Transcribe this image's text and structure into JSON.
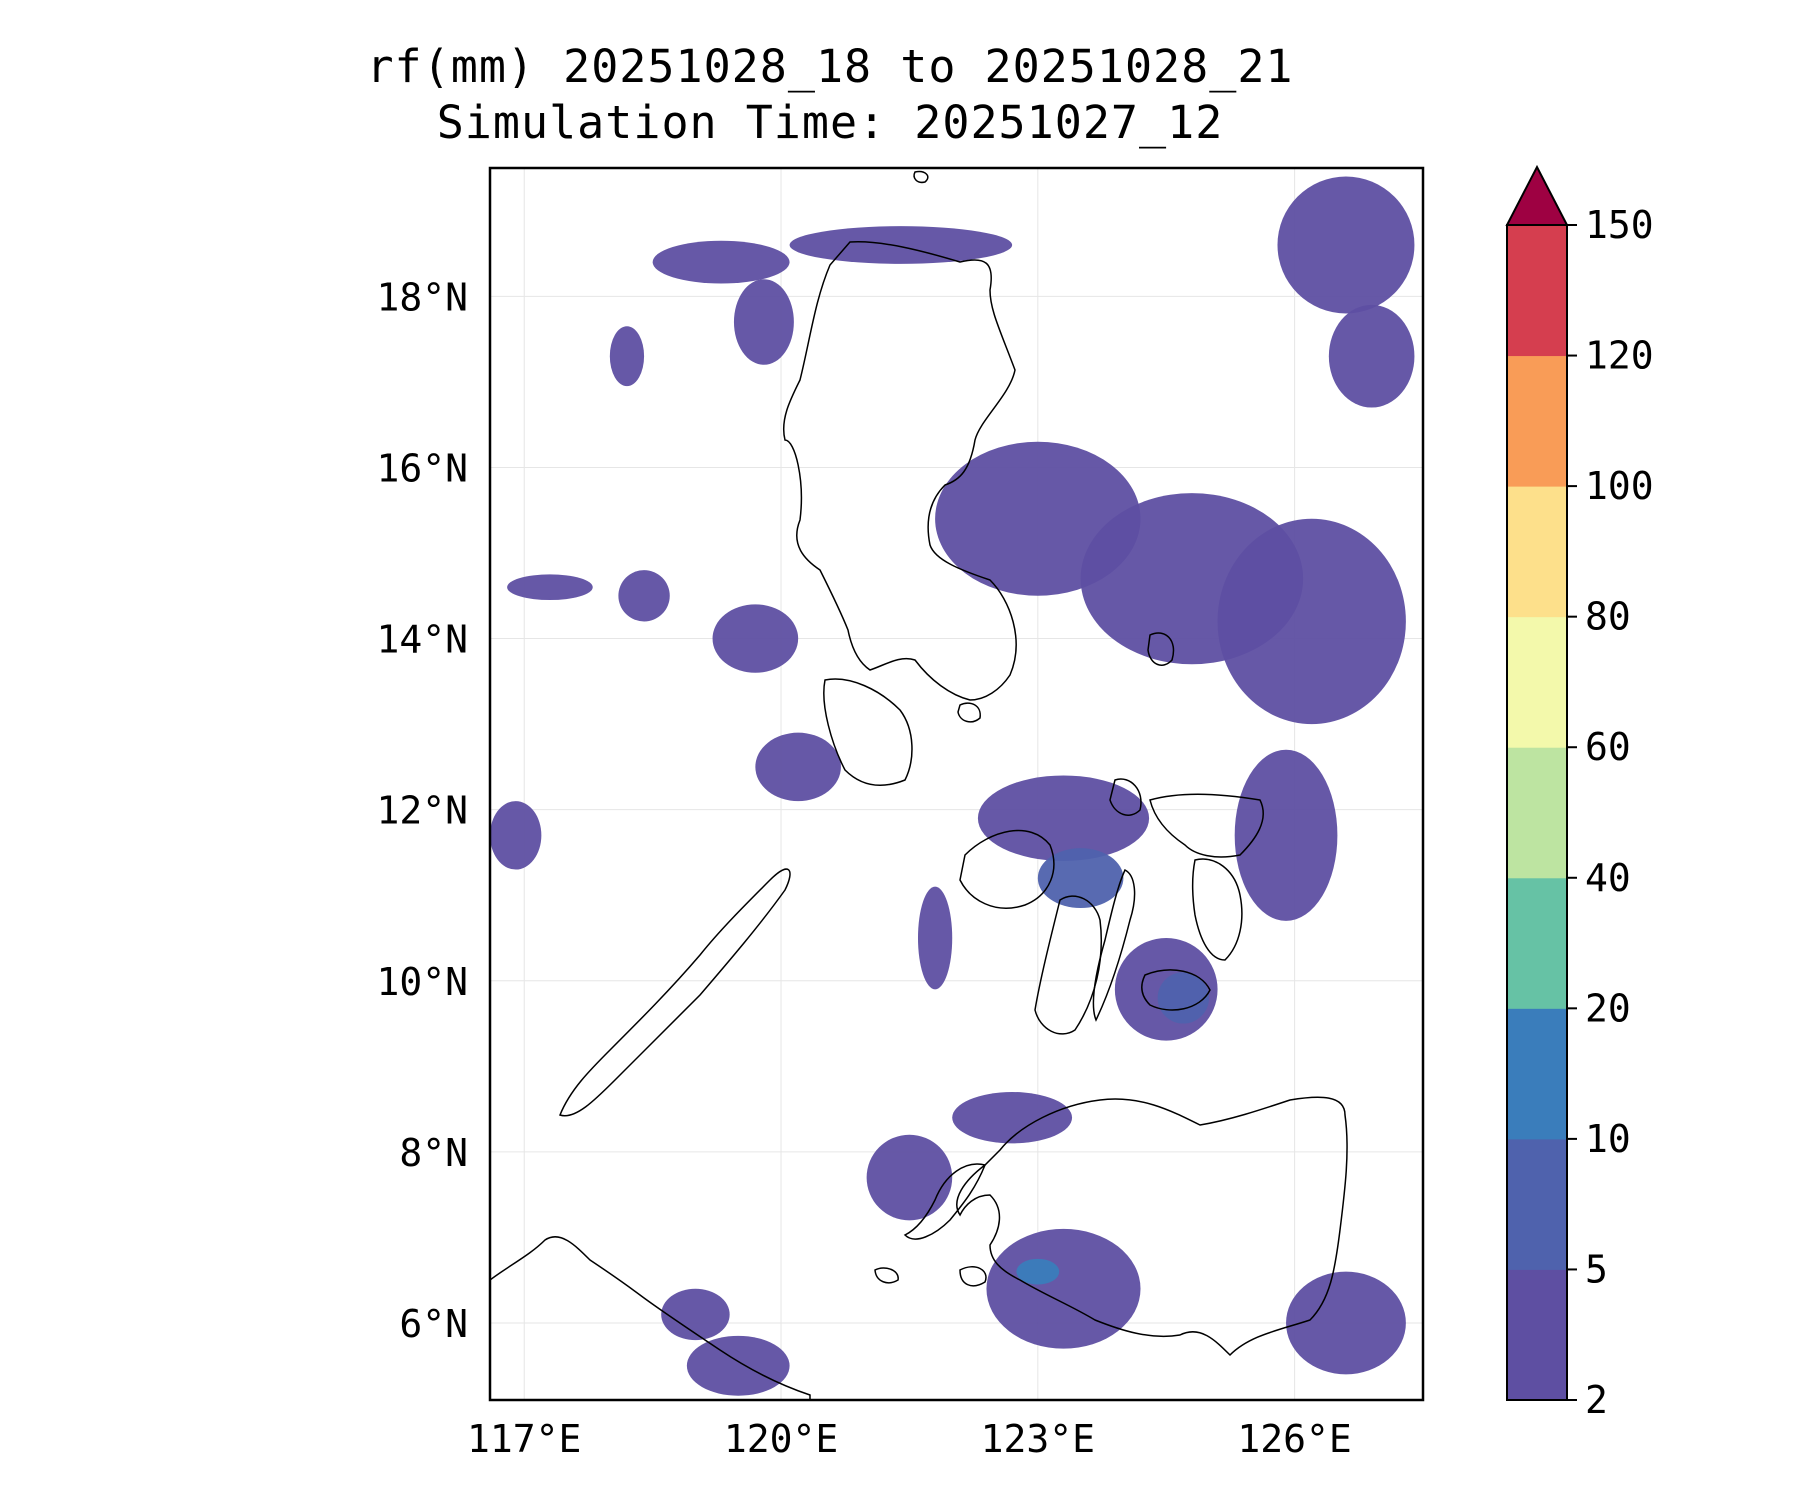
{
  "title": {
    "line1": "rf(mm) 20251028_18 to 20251028_21",
    "line2": "Simulation Time: 20251027_12"
  },
  "map": {
    "lon_range": [
      116.6,
      127.5
    ],
    "lat_range": [
      5.1,
      19.5
    ],
    "lat_ticks": [
      {
        "value": 18,
        "label": "18°N"
      },
      {
        "value": 16,
        "label": "16°N"
      },
      {
        "value": 14,
        "label": "14°N"
      },
      {
        "value": 12,
        "label": "12°N"
      },
      {
        "value": 10,
        "label": "10°N"
      },
      {
        "value": 8,
        "label": "8°N"
      },
      {
        "value": 6,
        "label": "6°N"
      }
    ],
    "lon_ticks": [
      {
        "value": 117,
        "label": "117°E"
      },
      {
        "value": 120,
        "label": "120°E"
      },
      {
        "value": 123,
        "label": "123°E"
      },
      {
        "value": 126,
        "label": "126°E"
      }
    ],
    "gridlines": true,
    "coastline_color": "#000000"
  },
  "colorbar": {
    "levels": [
      "2",
      "5",
      "10",
      "20",
      "40",
      "60",
      "80",
      "100",
      "120",
      "150"
    ],
    "colors": [
      "#5e4fa2",
      "#4f62ad",
      "#3a7dbb",
      "#66c2a5",
      "#bde4a1",
      "#f3f9ab",
      "#fde08b",
      "#f99c57",
      "#d53e4f"
    ],
    "extend_color": "#9e0142",
    "extend": "max"
  },
  "rain_areas": [
    {
      "level": 1,
      "lon": 119.3,
      "lat": 18.4,
      "rx": 0.8,
      "ry": 0.25
    },
    {
      "level": 1,
      "lon": 121.4,
      "lat": 18.6,
      "rx": 1.3,
      "ry": 0.22
    },
    {
      "level": 1,
      "lon": 119.8,
      "lat": 17.7,
      "rx": 0.35,
      "ry": 0.5
    },
    {
      "level": 1,
      "lon": 118.2,
      "lat": 17.3,
      "rx": 0.2,
      "ry": 0.35
    },
    {
      "level": 1,
      "lon": 126.6,
      "lat": 18.6,
      "rx": 0.8,
      "ry": 0.8
    },
    {
      "level": 1,
      "lon": 126.9,
      "lat": 17.3,
      "rx": 0.5,
      "ry": 0.6
    },
    {
      "level": 1,
      "lon": 123.0,
      "lat": 15.4,
      "rx": 1.2,
      "ry": 0.9
    },
    {
      "level": 1,
      "lon": 124.8,
      "lat": 14.7,
      "rx": 1.3,
      "ry": 1.0
    },
    {
      "level": 1,
      "lon": 126.2,
      "lat": 14.2,
      "rx": 1.1,
      "ry": 1.2
    },
    {
      "level": 1,
      "lon": 119.7,
      "lat": 14.0,
      "rx": 0.5,
      "ry": 0.4
    },
    {
      "level": 1,
      "lon": 120.2,
      "lat": 12.5,
      "rx": 0.5,
      "ry": 0.4
    },
    {
      "level": 1,
      "lon": 123.3,
      "lat": 11.9,
      "rx": 1.0,
      "ry": 0.5
    },
    {
      "level": 2,
      "lon": 123.5,
      "lat": 11.2,
      "rx": 0.5,
      "ry": 0.35
    },
    {
      "level": 1,
      "lon": 125.9,
      "lat": 11.7,
      "rx": 0.6,
      "ry": 1.0
    },
    {
      "level": 1,
      "lon": 124.5,
      "lat": 9.9,
      "rx": 0.6,
      "ry": 0.6
    },
    {
      "level": 2,
      "lon": 124.7,
      "lat": 9.8,
      "rx": 0.3,
      "ry": 0.3
    },
    {
      "level": 1,
      "lon": 122.7,
      "lat": 8.4,
      "rx": 0.7,
      "ry": 0.3
    },
    {
      "level": 1,
      "lon": 121.5,
      "lat": 7.7,
      "rx": 0.5,
      "ry": 0.5
    },
    {
      "level": 1,
      "lon": 123.3,
      "lat": 6.4,
      "rx": 0.9,
      "ry": 0.7
    },
    {
      "level": 3,
      "lon": 123.0,
      "lat": 6.6,
      "rx": 0.25,
      "ry": 0.15
    },
    {
      "level": 1,
      "lon": 126.6,
      "lat": 6.0,
      "rx": 0.7,
      "ry": 0.6
    },
    {
      "level": 1,
      "lon": 119.0,
      "lat": 6.1,
      "rx": 0.4,
      "ry": 0.3
    },
    {
      "level": 1,
      "lon": 119.5,
      "lat": 5.5,
      "rx": 0.6,
      "ry": 0.35
    },
    {
      "level": 1,
      "lon": 117.3,
      "lat": 14.6,
      "rx": 0.5,
      "ry": 0.15
    },
    {
      "level": 1,
      "lon": 118.4,
      "lat": 14.5,
      "rx": 0.3,
      "ry": 0.3
    },
    {
      "level": 1,
      "lon": 116.9,
      "lat": 11.7,
      "rx": 0.3,
      "ry": 0.4
    },
    {
      "level": 1,
      "lon": 121.8,
      "lat": 10.5,
      "rx": 0.2,
      "ry": 0.6
    }
  ]
}
